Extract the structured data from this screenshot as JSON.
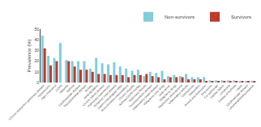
{
  "chart_data": {
    "type": "bar",
    "categories": [
      "Chronic obstructive pulmonary disease",
      "Hypertension",
      "High cholesterol",
      "COPD",
      "Diabetes",
      "Asthma",
      "Cardiovascular disease",
      "Musculoskeletal disease",
      "Anxiety",
      "Atrial fibrillation",
      "Chronic kidney disease",
      "Pulmonary hypertension",
      "Ischaemic heart disease",
      "Gastro-oesophageal reflux",
      "Bronchiectasis exacerbations",
      "Chronic sinusitis",
      "Asthma-COPD overlap",
      "Pulmonary fibrosis",
      "Thromboembolic disease",
      "Inflammatory bowel disease",
      "Malignancy (non-lung)",
      "Lung cancer",
      "Malignancy (lung)",
      "Obstructive sleep apnoea",
      "Inflammatory arthritis",
      "Osteoporosis",
      "Malnutrition",
      "Anxiety and depression",
      "Depression",
      "Cor pulmonale",
      "Cardiac failure",
      "Lymphoma",
      "Cardiac arrhythmia",
      "Lupus",
      "Cardiovascular disease",
      "Lymphangioleiomyomatosis"
    ],
    "series": [
      {
        "name": "Non-survivors",
        "color": "#7ecfd9",
        "values": [
          44,
          25,
          23,
          37,
          21,
          20,
          20,
          20,
          13,
          23,
          18,
          17,
          19,
          15,
          13,
          11,
          12,
          6,
          10,
          9,
          11,
          6,
          7,
          6,
          8,
          5,
          5,
          5,
          2,
          2,
          2,
          2,
          2,
          1.5,
          1.5,
          1.5
        ]
      },
      {
        "name": "Survivors",
        "color": "#c0392b",
        "values": [
          32,
          16,
          20,
          0,
          20,
          15,
          12,
          12,
          10,
          8,
          8,
          7,
          7,
          7,
          5,
          7,
          7,
          8,
          6,
          5,
          3,
          5,
          5,
          5,
          3,
          3,
          3,
          1,
          1,
          1,
          1,
          1,
          1,
          1,
          1,
          1
        ]
      }
    ],
    "ylabel": "Prevalence (%)",
    "ylim": [
      0,
      50
    ],
    "yticks": [
      0,
      10,
      20,
      30,
      40,
      50
    ],
    "grid": false,
    "legend": "upper right"
  }
}
